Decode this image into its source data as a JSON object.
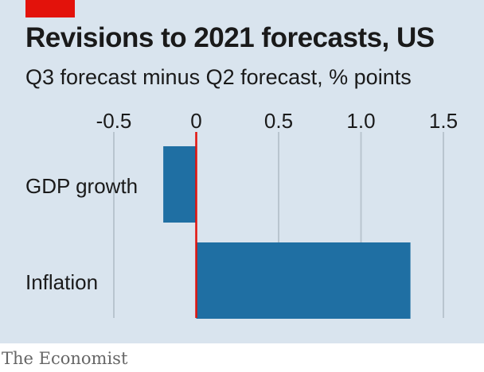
{
  "header": {
    "title": "Revisions to 2021 forecasts, US",
    "subtitle": "Q3 forecast minus Q2 forecast, % points"
  },
  "footer": {
    "source": "The Economist"
  },
  "colors": {
    "background": "#d9e4ee",
    "bar": "#1f6fa3",
    "zero_line": "#e3120b",
    "grid": "#b9c5cf",
    "tag": "#e3120b"
  },
  "chart_data": {
    "type": "bar",
    "orientation": "horizontal",
    "categories": [
      "GDP growth",
      "Inflation"
    ],
    "values": [
      -0.2,
      1.3
    ],
    "xlim": [
      -0.5,
      1.5
    ],
    "xticks": [
      -0.5,
      0,
      0.5,
      1.0,
      1.5
    ],
    "xtick_labels": [
      "-0.5",
      "0",
      "0.5",
      "1.0",
      "1.5"
    ],
    "title": "Revisions to 2021 forecasts, US",
    "subtitle": "Q3 forecast minus Q2 forecast, % points",
    "grid": true,
    "legend": "none"
  }
}
